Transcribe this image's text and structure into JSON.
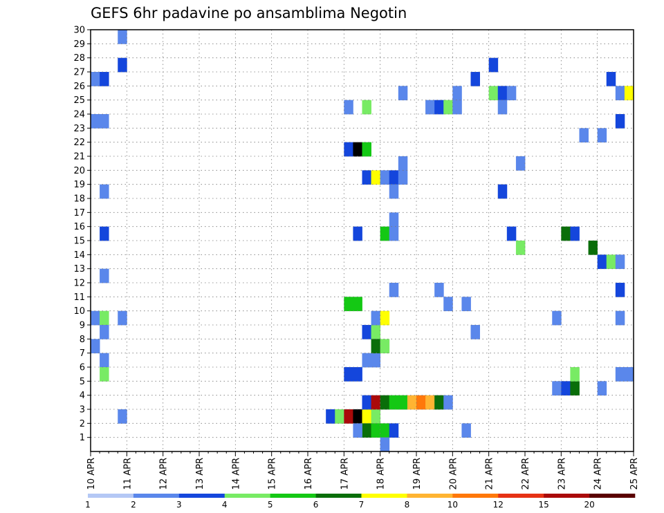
{
  "chart_data": {
    "type": "heatmap",
    "title": "GEFS 6hr padavine po ansamblima Negotin",
    "xlabel": "",
    "ylabel": "",
    "x_ticks": [
      "10 APR",
      "11 APR",
      "12 APR",
      "13 APR",
      "14 APR",
      "15 APR",
      "16 APR",
      "17 APR",
      "18 APR",
      "19 APR",
      "20 APR",
      "21 APR",
      "22 APR",
      "23 APR",
      "24 APR",
      "25 APR"
    ],
    "y_ticks": [
      1,
      2,
      3,
      4,
      5,
      6,
      7,
      8,
      9,
      10,
      11,
      12,
      13,
      14,
      15,
      16,
      17,
      18,
      19,
      20,
      21,
      22,
      23,
      24,
      25,
      26,
      27,
      28,
      29,
      30
    ],
    "y_range": [
      0,
      30
    ],
    "x_steps_per_day": 4,
    "x_steps_total": 60,
    "grid": true,
    "colorbar": {
      "labels": [
        "1",
        "2",
        "3",
        "4",
        "5",
        "6",
        "7",
        "8",
        "10",
        "12",
        "15",
        "20"
      ],
      "colors": [
        "#b4c8f5",
        "#5a87eb",
        "#1446dc",
        "#78eb64",
        "#14c814",
        "#0a6e0a",
        "#ffff00",
        "#ffb432",
        "#ff780a",
        "#e63214",
        "#aa0a0a",
        "#5a0000"
      ]
    },
    "cells": [
      [
        0,
        26,
        1
      ],
      [
        1,
        26,
        2
      ],
      [
        0,
        23,
        1
      ],
      [
        1,
        23,
        1
      ],
      [
        0,
        9,
        1
      ],
      [
        1,
        9,
        3
      ],
      [
        1,
        8,
        1
      ],
      [
        0,
        7,
        1
      ],
      [
        1,
        6,
        1
      ],
      [
        1,
        5,
        3
      ],
      [
        1,
        15,
        2
      ],
      [
        1,
        18,
        1
      ],
      [
        1,
        12,
        1
      ],
      [
        3,
        29,
        1
      ],
      [
        3,
        27,
        2
      ],
      [
        3,
        9,
        1
      ],
      [
        3,
        2,
        1
      ],
      [
        26,
        2,
        2
      ],
      [
        27,
        2,
        3
      ],
      [
        28,
        2,
        10
      ],
      [
        29,
        2,
        12
      ],
      [
        30,
        2,
        6
      ],
      [
        31,
        2,
        3
      ],
      [
        30,
        3,
        2
      ],
      [
        31,
        3,
        10
      ],
      [
        32,
        3,
        5
      ],
      [
        33,
        3,
        4
      ],
      [
        34,
        3,
        4
      ],
      [
        35,
        3,
        7
      ],
      [
        36,
        3,
        8
      ],
      [
        37,
        3,
        7
      ],
      [
        38,
        3,
        5
      ],
      [
        39,
        3,
        1
      ],
      [
        30,
        1,
        5
      ],
      [
        31,
        1,
        4
      ],
      [
        32,
        1,
        4
      ],
      [
        33,
        1,
        2
      ],
      [
        32,
        0,
        1
      ],
      [
        29,
        1,
        1
      ],
      [
        28,
        5,
        2
      ],
      [
        29,
        5,
        2
      ],
      [
        30,
        6,
        1
      ],
      [
        31,
        6,
        1
      ],
      [
        30,
        8,
        2
      ],
      [
        31,
        8,
        3
      ],
      [
        31,
        7,
        5
      ],
      [
        32,
        7,
        3
      ],
      [
        31,
        9,
        1
      ],
      [
        32,
        9,
        6
      ],
      [
        28,
        10,
        4
      ],
      [
        29,
        10,
        4
      ],
      [
        28,
        21,
        2
      ],
      [
        29,
        21,
        12
      ],
      [
        30,
        21,
        4
      ],
      [
        28,
        24,
        1
      ],
      [
        30,
        24,
        3
      ],
      [
        30,
        19,
        2
      ],
      [
        31,
        19,
        6
      ],
      [
        32,
        19,
        1
      ],
      [
        33,
        19,
        2
      ],
      [
        34,
        19,
        1
      ],
      [
        33,
        18,
        1
      ],
      [
        33,
        16,
        1
      ],
      [
        32,
        15,
        4
      ],
      [
        33,
        15,
        1
      ],
      [
        29,
        15,
        2
      ],
      [
        33,
        11,
        1
      ],
      [
        34,
        20,
        1
      ],
      [
        34,
        25,
        1
      ],
      [
        37,
        24,
        1
      ],
      [
        38,
        24,
        2
      ],
      [
        39,
        24,
        3
      ],
      [
        40,
        24,
        1
      ],
      [
        40,
        25,
        1
      ],
      [
        38,
        11,
        1
      ],
      [
        39,
        10,
        1
      ],
      [
        41,
        10,
        1
      ],
      [
        41,
        1,
        1
      ],
      [
        42,
        8,
        1
      ],
      [
        42,
        26,
        2
      ],
      [
        44,
        27,
        2
      ],
      [
        44,
        25,
        3
      ],
      [
        45,
        25,
        2
      ],
      [
        46,
        25,
        1
      ],
      [
        45,
        24,
        1
      ],
      [
        45,
        18,
        2
      ],
      [
        46,
        15,
        2
      ],
      [
        47,
        14,
        3
      ],
      [
        47,
        20,
        1
      ],
      [
        51,
        4,
        1
      ],
      [
        52,
        4,
        2
      ],
      [
        53,
        4,
        5
      ],
      [
        53,
        5,
        3
      ],
      [
        51,
        9,
        1
      ],
      [
        52,
        15,
        5
      ],
      [
        53,
        15,
        2
      ],
      [
        55,
        14,
        5
      ],
      [
        56,
        13,
        2
      ],
      [
        57,
        13,
        3
      ],
      [
        58,
        13,
        1
      ],
      [
        54,
        22,
        1
      ],
      [
        56,
        22,
        1
      ],
      [
        58,
        23,
        2
      ],
      [
        58,
        25,
        1
      ],
      [
        59,
        25,
        6
      ],
      [
        57,
        26,
        2
      ],
      [
        58,
        11,
        2
      ],
      [
        58,
        9,
        1
      ],
      [
        58,
        5,
        1
      ],
      [
        59,
        5,
        1
      ],
      [
        56,
        4,
        1
      ]
    ]
  }
}
